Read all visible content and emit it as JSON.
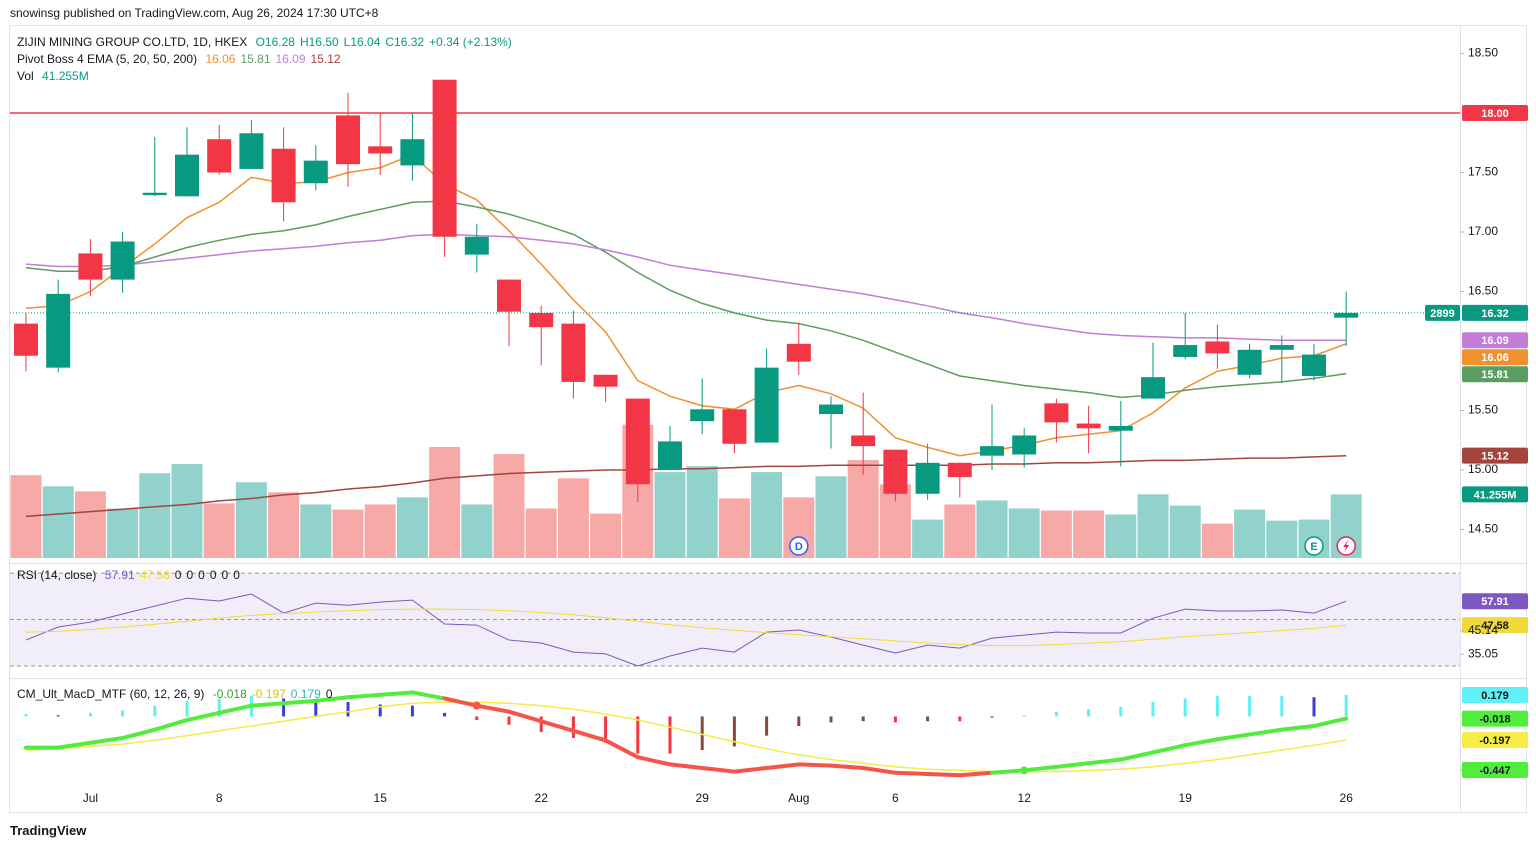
{
  "page": {
    "attribution": "snowinsg published on TradingView.com, Aug 26, 2024 17:30 UTC+8",
    "footer": "TradingView"
  },
  "chart_data": [
    {
      "type": "candlestick",
      "title": "ZIJIN MINING GROUP CO.LTD, 1D, HKEX",
      "ohlc_text": [
        "O16.28",
        "H16.50",
        "L16.04",
        "C16.32"
      ],
      "change": "+0.34 (+2.13%)",
      "indicator_title": "Pivot Boss 4 EMA (5, 20, 50, 200)",
      "symbol_code": "2899",
      "categories": [
        null,
        null,
        "Jul",
        null,
        null,
        null,
        "8",
        null,
        null,
        null,
        null,
        "15",
        null,
        null,
        null,
        null,
        "22",
        null,
        null,
        null,
        null,
        "29",
        null,
        null,
        "Aug",
        null,
        null,
        "6",
        null,
        null,
        null,
        "12",
        null,
        null,
        null,
        null,
        "19",
        null,
        null,
        null,
        null,
        "26"
      ],
      "candles": [
        {
          "open": 16.23,
          "high": 16.32,
          "low": 15.83,
          "close": 15.96
        },
        {
          "open": 15.86,
          "high": 16.6,
          "low": 15.82,
          "close": 16.48
        },
        {
          "open": 16.82,
          "high": 16.94,
          "low": 16.46,
          "close": 16.6
        },
        {
          "open": 16.6,
          "high": 17.0,
          "low": 16.49,
          "close": 16.92
        },
        {
          "open": 17.31,
          "high": 17.8,
          "low": 17.3,
          "close": 17.33
        },
        {
          "open": 17.3,
          "high": 17.88,
          "low": 17.3,
          "close": 17.65
        },
        {
          "open": 17.78,
          "high": 17.9,
          "low": 17.48,
          "close": 17.5
        },
        {
          "open": 17.53,
          "high": 17.94,
          "low": 17.53,
          "close": 17.83
        },
        {
          "open": 17.7,
          "high": 17.88,
          "low": 17.09,
          "close": 17.25
        },
        {
          "open": 17.41,
          "high": 17.73,
          "low": 17.35,
          "close": 17.6
        },
        {
          "open": 17.98,
          "high": 18.17,
          "low": 17.38,
          "close": 17.57
        },
        {
          "open": 17.72,
          "high": 18.0,
          "low": 17.48,
          "close": 17.66
        },
        {
          "open": 17.56,
          "high": 18.0,
          "low": 17.43,
          "close": 17.78
        },
        {
          "open": 18.28,
          "high": 18.28,
          "low": 16.79,
          "close": 16.96
        },
        {
          "open": 16.81,
          "high": 17.07,
          "low": 16.66,
          "close": 16.96
        },
        {
          "open": 16.6,
          "high": 16.6,
          "low": 16.04,
          "close": 16.33
        },
        {
          "open": 16.32,
          "high": 16.38,
          "low": 15.88,
          "close": 16.2
        },
        {
          "open": 16.23,
          "high": 16.34,
          "low": 15.6,
          "close": 15.74
        },
        {
          "open": 15.8,
          "high": 15.8,
          "low": 15.57,
          "close": 15.7
        },
        {
          "open": 15.6,
          "high": 15.6,
          "low": 14.73,
          "close": 14.88
        },
        {
          "open": 15.0,
          "high": 15.37,
          "low": 15.0,
          "close": 15.24
        },
        {
          "open": 15.41,
          "high": 15.77,
          "low": 15.3,
          "close": 15.51
        },
        {
          "open": 15.51,
          "high": 15.51,
          "low": 15.14,
          "close": 15.22
        },
        {
          "open": 15.23,
          "high": 16.02,
          "low": 15.23,
          "close": 15.86
        },
        {
          "open": 16.06,
          "high": 16.24,
          "low": 15.8,
          "close": 15.91
        },
        {
          "open": 15.47,
          "high": 15.62,
          "low": 15.18,
          "close": 15.55
        },
        {
          "open": 15.29,
          "high": 15.65,
          "low": 14.96,
          "close": 15.2
        },
        {
          "open": 15.17,
          "high": 15.17,
          "low": 14.74,
          "close": 14.8
        },
        {
          "open": 14.8,
          "high": 15.22,
          "low": 14.75,
          "close": 15.06
        },
        {
          "open": 15.06,
          "high": 15.06,
          "low": 14.77,
          "close": 14.94
        },
        {
          "open": 15.12,
          "high": 15.55,
          "low": 15.0,
          "close": 15.2
        },
        {
          "open": 15.13,
          "high": 15.35,
          "low": 15.02,
          "close": 15.29
        },
        {
          "open": 15.56,
          "high": 15.6,
          "low": 15.23,
          "close": 15.4
        },
        {
          "open": 15.39,
          "high": 15.54,
          "low": 15.14,
          "close": 15.35
        },
        {
          "open": 15.33,
          "high": 15.58,
          "low": 15.03,
          "close": 15.37
        },
        {
          "open": 15.6,
          "high": 16.07,
          "low": 15.6,
          "close": 15.78
        },
        {
          "open": 15.95,
          "high": 16.32,
          "low": 15.93,
          "close": 16.05
        },
        {
          "open": 16.08,
          "high": 16.22,
          "low": 15.85,
          "close": 15.98
        },
        {
          "open": 15.8,
          "high": 16.06,
          "low": 15.77,
          "close": 16.01
        },
        {
          "open": 16.01,
          "high": 16.13,
          "low": 15.73,
          "close": 16.05
        },
        {
          "open": 15.79,
          "high": 16.06,
          "low": 15.75,
          "close": 15.97
        },
        {
          "open": 16.28,
          "high": 16.5,
          "low": 16.04,
          "close": 16.32
        }
      ],
      "up_color": "#089981",
      "down_color": "#f23645",
      "volume": {
        "name": "Vol",
        "values": [
          53.7,
          46.5,
          43.2,
          32.1,
          55.0,
          60.9,
          35.4,
          49.1,
          42.6,
          34.7,
          31.4,
          34.7,
          39.3,
          72.0,
          34.7,
          67.4,
          32.1,
          51.7,
          28.8,
          86.4,
          55.7,
          59.6,
          38.6,
          55.7,
          39.3,
          53.0,
          63.5,
          47.8,
          24.9,
          34.7,
          37.3,
          32.1,
          30.8,
          30.8,
          28.2,
          41.3,
          34.0,
          22.3,
          31.4,
          24.2,
          24.9,
          41.255
        ],
        "value_labels": [
          null,
          null,
          null,
          null,
          null,
          null,
          null,
          null,
          null,
          null,
          null,
          null,
          null,
          null,
          null,
          null,
          null,
          null,
          null,
          null,
          null,
          null,
          null,
          null,
          null,
          null,
          null,
          null,
          null,
          null,
          null,
          null,
          null,
          null,
          null,
          null,
          null,
          null,
          null,
          null,
          null,
          "41.255M"
        ],
        "up_color": "#92d2cc",
        "down_color": "#f7a9a7"
      },
      "series": [
        {
          "color": "#f0902e",
          "values": [
            16.36,
            16.38,
            16.5,
            16.7,
            16.9,
            17.12,
            17.25,
            17.46,
            17.41,
            17.42,
            17.5,
            17.54,
            17.65,
            17.4,
            17.27,
            17.01,
            16.73,
            16.43,
            16.16,
            15.75,
            15.62,
            15.54,
            15.51,
            15.65,
            15.71,
            15.64,
            15.52,
            15.27,
            15.19,
            15.12,
            15.16,
            15.21,
            15.27,
            15.3,
            15.33,
            15.48,
            15.69,
            15.83,
            15.88,
            15.94,
            15.96,
            16.06
          ]
        },
        {
          "color": "#5c9e62",
          "values": [
            16.7,
            16.67,
            16.67,
            16.71,
            16.79,
            16.87,
            16.93,
            16.98,
            17.01,
            17.06,
            17.13,
            17.19,
            17.25,
            17.26,
            17.21,
            17.15,
            17.07,
            16.98,
            16.83,
            16.66,
            16.51,
            16.4,
            16.32,
            16.26,
            16.23,
            16.17,
            16.09,
            15.99,
            15.89,
            15.79,
            15.75,
            15.71,
            15.68,
            15.65,
            15.61,
            15.63,
            15.67,
            15.7,
            15.72,
            15.74,
            15.77,
            15.81
          ]
        },
        {
          "color": "#c27ed6",
          "values": [
            16.73,
            16.71,
            16.71,
            16.72,
            16.75,
            16.78,
            16.81,
            16.84,
            16.86,
            16.88,
            16.91,
            16.93,
            16.97,
            16.98,
            16.97,
            16.96,
            16.93,
            16.9,
            16.85,
            16.79,
            16.72,
            16.68,
            16.64,
            16.6,
            16.56,
            16.52,
            16.48,
            16.43,
            16.38,
            16.32,
            16.28,
            16.23,
            16.19,
            16.15,
            16.13,
            16.12,
            16.11,
            16.11,
            16.1,
            16.09,
            16.09,
            16.09
          ]
        },
        {
          "color": "#a5443e",
          "values": [
            14.61,
            14.63,
            14.65,
            14.67,
            14.69,
            14.71,
            14.74,
            14.76,
            14.79,
            14.81,
            14.84,
            14.86,
            14.89,
            14.93,
            14.95,
            14.97,
            14.98,
            14.99,
            15.0,
            15.0,
            15.01,
            15.01,
            15.02,
            15.03,
            15.03,
            15.04,
            15.04,
            15.04,
            15.04,
            15.04,
            15.05,
            15.05,
            15.06,
            15.06,
            15.07,
            15.08,
            15.08,
            15.09,
            15.1,
            15.1,
            15.11,
            15.12
          ]
        }
      ],
      "hline": {
        "value": 18,
        "label": "18.00",
        "color": "#f23645"
      },
      "last_price_color": "#089981",
      "markers": [
        "D",
        "E"
      ],
      "ylim": [
        14.26,
        18.74
      ],
      "yticks": [
        {
          "value": 18.5,
          "label": "18.50"
        },
        {
          "value": 17.5,
          "label": "17.50"
        },
        {
          "value": 17,
          "label": "17.00"
        },
        {
          "value": 16.5,
          "label": "16.50"
        },
        {
          "value": 15.5,
          "label": "15.50"
        },
        {
          "value": 15,
          "label": "15.00"
        },
        {
          "value": 14.5,
          "label": "14.50"
        }
      ]
    },
    {
      "type": "line",
      "title": "RSI (14, close)",
      "extras": [
        0,
        0,
        0,
        0,
        0,
        0
      ],
      "series": [
        {
          "color": "#7e57c2",
          "values": [
            41.2,
            46.8,
            48.9,
            52.4,
            55.8,
            59.2,
            58.0,
            61.0,
            52.8,
            57.1,
            56.2,
            57.5,
            58.4,
            48.1,
            47.6,
            41.2,
            39.9,
            36.0,
            35.2,
            30.0,
            34.3,
            37.7,
            36.0,
            44.6,
            45.5,
            42.5,
            39.0,
            35.6,
            39.0,
            37.7,
            42.0,
            43.3,
            44.6,
            44.2,
            44.2,
            50.6,
            54.5,
            53.7,
            53.7,
            54.1,
            52.8,
            57.91
          ]
        },
        {
          "color": "#f2d93a",
          "values": [
            44.5,
            45.0,
            45.7,
            46.8,
            48.0,
            49.3,
            50.6,
            51.8,
            52.6,
            53.2,
            53.8,
            54.3,
            54.5,
            54.5,
            54.3,
            53.8,
            53.0,
            52.0,
            50.8,
            49.3,
            47.8,
            46.5,
            45.4,
            44.4,
            43.5,
            42.6,
            41.7,
            40.8,
            39.9,
            39.2,
            38.8,
            38.8,
            39.2,
            39.8,
            40.5,
            41.5,
            42.6,
            43.5,
            44.4,
            45.3,
            46.2,
            47.58
          ]
        }
      ],
      "levels": [
        30,
        50,
        70
      ],
      "band_color": "#7e57c2",
      "ylim": [
        25.7,
        72.2
      ],
      "yticks": [
        45.14,
        35.05
      ]
    },
    {
      "type": "macd",
      "title": "CM_Ult_MacD_MTF (60, 12, 26, 9)",
      "extras": [
        0
      ],
      "macd": {
        "values": [
          -0.26,
          -0.26,
          -0.22,
          -0.18,
          -0.11,
          -0.03,
          0.03,
          0.09,
          0.11,
          0.13,
          0.16,
          0.18,
          0.2,
          0.15,
          0.09,
          0.04,
          -0.04,
          -0.12,
          -0.2,
          -0.34,
          -0.4,
          -0.43,
          -0.46,
          -0.43,
          -0.4,
          -0.41,
          -0.43,
          -0.47,
          -0.48,
          -0.49,
          -0.47,
          -0.45,
          -0.42,
          -0.39,
          -0.36,
          -0.3,
          -0.24,
          -0.19,
          -0.15,
          -0.11,
          -0.08,
          -0.018
        ],
        "up_color": "#52ec3c",
        "down_color": "#f4554a"
      },
      "signal": {
        "values": [
          -0.28,
          -0.27,
          -0.25,
          -0.23,
          -0.2,
          -0.16,
          -0.12,
          -0.08,
          -0.04,
          0.0,
          0.04,
          0.08,
          0.11,
          0.12,
          0.12,
          0.11,
          0.09,
          0.06,
          0.02,
          -0.03,
          -0.09,
          -0.15,
          -0.21,
          -0.27,
          -0.32,
          -0.36,
          -0.39,
          -0.42,
          -0.44,
          -0.45,
          -0.46,
          -0.46,
          -0.46,
          -0.45,
          -0.44,
          -0.42,
          -0.39,
          -0.36,
          -0.32,
          -0.28,
          -0.24,
          -0.197
        ],
        "color": "#f5ec45"
      },
      "histogram": {
        "values": [
          0.02,
          0.01,
          0.03,
          0.05,
          0.09,
          0.13,
          0.15,
          0.17,
          0.15,
          0.13,
          0.12,
          0.1,
          0.09,
          0.03,
          -0.03,
          -0.07,
          -0.13,
          -0.18,
          -0.22,
          -0.31,
          -0.31,
          -0.28,
          -0.25,
          -0.16,
          -0.08,
          -0.05,
          -0.04,
          -0.05,
          -0.04,
          -0.04,
          -0.01,
          0.01,
          0.04,
          0.06,
          0.08,
          0.12,
          0.15,
          0.17,
          0.17,
          0.17,
          0.16,
          0.179
        ],
        "colors": {
          "up_rising": "#5ff0f5",
          "up_falling": "#3c3cd8",
          "down_falling": "#f23645",
          "down_rising": "#8a4a3a"
        }
      },
      "ylim": [
        -0.797,
        0.304
      ],
      "yticks": [
        -0.447
      ]
    }
  ]
}
